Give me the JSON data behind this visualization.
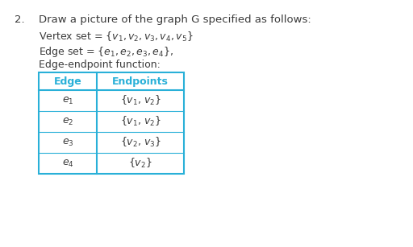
{
  "title_number": "2.",
  "title_text": "Draw a picture of the graph G specified as follows:",
  "line1_prefix": "Vertex set = {",
  "line1_content": "v_1, v_2, v_3, v_4, v_5",
  "line1_suffix": "}",
  "line2_prefix": "Edge set = {",
  "line2_content": "e_1, e_2, e_3, e_4",
  "line2_suffix": "},",
  "line3": "Edge-endpoint function:",
  "col1_header": "Edge",
  "col2_header": "Endpoints",
  "rows_edge": [
    "$e_1$",
    "$e_2$",
    "$e_3$",
    "$e_4$"
  ],
  "rows_endpoints": [
    "{$v_1$, $v_2$}",
    "{$v_1$, $v_2$}",
    "{$v_2$, $v_3$}",
    "{$v_2$}"
  ],
  "bg_color": "#ffffff",
  "text_color": "#3a3a3a",
  "header_text_color": "#29b0d8",
  "border_color": "#29b0d8",
  "font_size_title": 9.5,
  "font_size_body": 9.0,
  "font_size_table": 9.0
}
